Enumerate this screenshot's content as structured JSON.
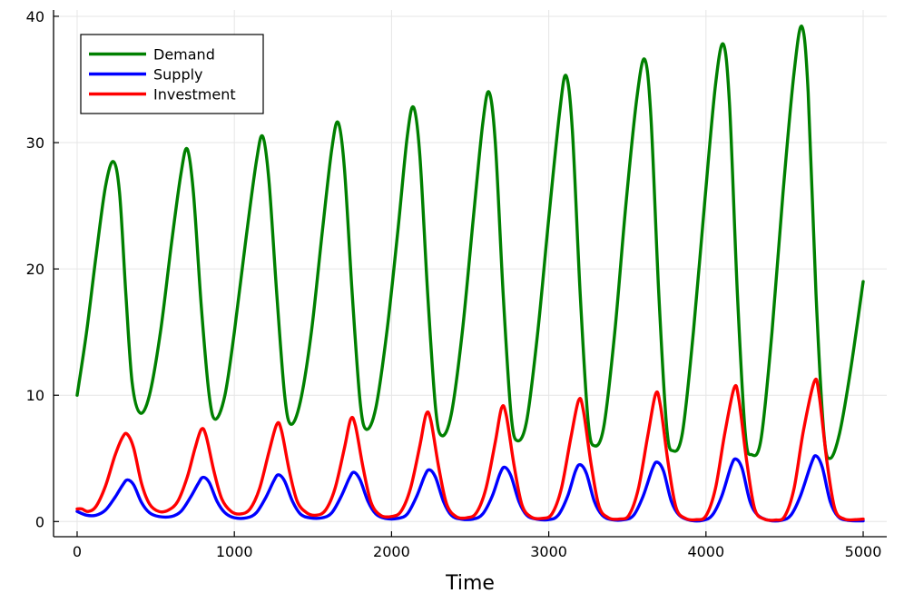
{
  "chart_data": {
    "type": "line",
    "title": "",
    "xlabel": "Time",
    "ylabel": "",
    "xlim": [
      -150,
      5150
    ],
    "ylim": [
      -1.2,
      40.5
    ],
    "grid": true,
    "legend_position": "top-left",
    "x_ticks": [
      0,
      1000,
      2000,
      3000,
      4000,
      5000
    ],
    "x_tick_labels": [
      "0",
      "1000",
      "2000",
      "3000",
      "4000",
      "5000"
    ],
    "y_ticks": [
      0,
      10,
      20,
      30,
      40
    ],
    "y_tick_labels": [
      "0",
      "10",
      "20",
      "30",
      "40"
    ],
    "series": [
      {
        "name": "Demand",
        "color": "#008000",
        "points": [
          [
            0,
            10
          ],
          [
            60,
            15
          ],
          [
            120,
            21
          ],
          [
            180,
            26.5
          ],
          [
            230,
            28.5
          ],
          [
            270,
            26
          ],
          [
            310,
            18
          ],
          [
            350,
            11
          ],
          [
            400,
            8.6
          ],
          [
            460,
            10
          ],
          [
            530,
            15
          ],
          [
            600,
            22
          ],
          [
            660,
            27.5
          ],
          [
            700,
            29.5
          ],
          [
            740,
            26
          ],
          [
            790,
            17
          ],
          [
            840,
            10
          ],
          [
            880,
            8.1
          ],
          [
            940,
            10
          ],
          [
            1000,
            15
          ],
          [
            1070,
            22
          ],
          [
            1140,
            28.5
          ],
          [
            1180,
            30.5
          ],
          [
            1220,
            27
          ],
          [
            1270,
            18
          ],
          [
            1320,
            10
          ],
          [
            1360,
            7.7
          ],
          [
            1420,
            9.5
          ],
          [
            1490,
            15
          ],
          [
            1560,
            23
          ],
          [
            1620,
            29.5
          ],
          [
            1660,
            31.6
          ],
          [
            1700,
            28
          ],
          [
            1750,
            18
          ],
          [
            1800,
            9.5
          ],
          [
            1840,
            7.3
          ],
          [
            1900,
            9
          ],
          [
            1970,
            15
          ],
          [
            2040,
            23
          ],
          [
            2100,
            30.5
          ],
          [
            2140,
            32.8
          ],
          [
            2180,
            29
          ],
          [
            2230,
            18
          ],
          [
            2280,
            9
          ],
          [
            2320,
            6.8
          ],
          [
            2380,
            8.5
          ],
          [
            2450,
            15
          ],
          [
            2520,
            24
          ],
          [
            2580,
            31.5
          ],
          [
            2620,
            34
          ],
          [
            2660,
            30
          ],
          [
            2710,
            18
          ],
          [
            2760,
            8.5
          ],
          [
            2800,
            6.4
          ],
          [
            2860,
            8
          ],
          [
            2930,
            15
          ],
          [
            3000,
            24
          ],
          [
            3070,
            32.5
          ],
          [
            3110,
            35.3
          ],
          [
            3150,
            31
          ],
          [
            3200,
            18
          ],
          [
            3250,
            8
          ],
          [
            3290,
            6
          ],
          [
            3350,
            7.5
          ],
          [
            3420,
            15
          ],
          [
            3490,
            25
          ],
          [
            3560,
            33.5
          ],
          [
            3610,
            36.6
          ],
          [
            3650,
            32
          ],
          [
            3700,
            18
          ],
          [
            3750,
            7.5
          ],
          [
            3790,
            5.6
          ],
          [
            3850,
            7
          ],
          [
            3920,
            15
          ],
          [
            3990,
            25
          ],
          [
            4060,
            34.5
          ],
          [
            4110,
            37.8
          ],
          [
            4150,
            33
          ],
          [
            4200,
            18
          ],
          [
            4250,
            7
          ],
          [
            4290,
            5.3
          ],
          [
            4350,
            6.5
          ],
          [
            4420,
            15
          ],
          [
            4490,
            26
          ],
          [
            4560,
            35.5
          ],
          [
            4610,
            39.2
          ],
          [
            4650,
            34
          ],
          [
            4700,
            18
          ],
          [
            4750,
            7
          ],
          [
            4790,
            5
          ],
          [
            4850,
            7
          ],
          [
            4920,
            12
          ],
          [
            5000,
            19
          ]
        ]
      },
      {
        "name": "Supply",
        "color": "#0000ff",
        "points": [
          [
            0,
            0.8
          ],
          [
            60,
            0.5
          ],
          [
            120,
            0.5
          ],
          [
            180,
            0.9
          ],
          [
            240,
            1.9
          ],
          [
            290,
            2.9
          ],
          [
            320,
            3.3
          ],
          [
            360,
            2.9
          ],
          [
            410,
            1.5
          ],
          [
            460,
            0.7
          ],
          [
            520,
            0.4
          ],
          [
            600,
            0.4
          ],
          [
            660,
            0.8
          ],
          [
            720,
            1.9
          ],
          [
            770,
            3
          ],
          [
            800,
            3.5
          ],
          [
            840,
            3.1
          ],
          [
            890,
            1.6
          ],
          [
            940,
            0.7
          ],
          [
            1000,
            0.3
          ],
          [
            1080,
            0.3
          ],
          [
            1140,
            0.7
          ],
          [
            1200,
            1.9
          ],
          [
            1250,
            3.2
          ],
          [
            1280,
            3.7
          ],
          [
            1320,
            3.2
          ],
          [
            1370,
            1.6
          ],
          [
            1420,
            0.6
          ],
          [
            1480,
            0.3
          ],
          [
            1560,
            0.3
          ],
          [
            1620,
            0.7
          ],
          [
            1680,
            2
          ],
          [
            1730,
            3.4
          ],
          [
            1760,
            3.9
          ],
          [
            1800,
            3.3
          ],
          [
            1850,
            1.6
          ],
          [
            1900,
            0.6
          ],
          [
            1960,
            0.25
          ],
          [
            2040,
            0.25
          ],
          [
            2100,
            0.6
          ],
          [
            2160,
            2
          ],
          [
            2210,
            3.6
          ],
          [
            2240,
            4.1
          ],
          [
            2280,
            3.5
          ],
          [
            2330,
            1.6
          ],
          [
            2380,
            0.5
          ],
          [
            2440,
            0.2
          ],
          [
            2520,
            0.2
          ],
          [
            2580,
            0.6
          ],
          [
            2640,
            2
          ],
          [
            2690,
            3.8
          ],
          [
            2720,
            4.3
          ],
          [
            2760,
            3.6
          ],
          [
            2810,
            1.6
          ],
          [
            2860,
            0.5
          ],
          [
            2920,
            0.2
          ],
          [
            3000,
            0.15
          ],
          [
            3060,
            0.5
          ],
          [
            3120,
            2
          ],
          [
            3170,
            4
          ],
          [
            3200,
            4.5
          ],
          [
            3240,
            3.8
          ],
          [
            3290,
            1.6
          ],
          [
            3340,
            0.5
          ],
          [
            3400,
            0.15
          ],
          [
            3480,
            0.15
          ],
          [
            3540,
            0.5
          ],
          [
            3600,
            2
          ],
          [
            3660,
            4.2
          ],
          [
            3690,
            4.7
          ],
          [
            3730,
            4
          ],
          [
            3780,
            1.6
          ],
          [
            3830,
            0.5
          ],
          [
            3900,
            0.1
          ],
          [
            3980,
            0.1
          ],
          [
            4040,
            0.5
          ],
          [
            4100,
            2
          ],
          [
            4160,
            4.4
          ],
          [
            4190,
            4.95
          ],
          [
            4230,
            4.2
          ],
          [
            4280,
            1.6
          ],
          [
            4330,
            0.5
          ],
          [
            4400,
            0.1
          ],
          [
            4480,
            0.1
          ],
          [
            4540,
            0.5
          ],
          [
            4600,
            2
          ],
          [
            4670,
            4.6
          ],
          [
            4700,
            5.2
          ],
          [
            4740,
            4.3
          ],
          [
            4790,
            1.6
          ],
          [
            4840,
            0.4
          ],
          [
            4900,
            0.1
          ],
          [
            5000,
            0.05
          ]
        ]
      },
      {
        "name": "Investment",
        "color": "#ff0000",
        "points": [
          [
            0,
            1
          ],
          [
            30,
            1
          ],
          [
            70,
            0.8
          ],
          [
            120,
            1.2
          ],
          [
            180,
            2.8
          ],
          [
            240,
            5.2
          ],
          [
            290,
            6.7
          ],
          [
            320,
            6.9
          ],
          [
            360,
            5.8
          ],
          [
            410,
            3
          ],
          [
            460,
            1.4
          ],
          [
            520,
            0.8
          ],
          [
            580,
            0.9
          ],
          [
            640,
            1.6
          ],
          [
            700,
            3.5
          ],
          [
            750,
            5.8
          ],
          [
            790,
            7.3
          ],
          [
            820,
            6.8
          ],
          [
            870,
            4
          ],
          [
            920,
            1.8
          ],
          [
            980,
            0.8
          ],
          [
            1040,
            0.6
          ],
          [
            1100,
            1
          ],
          [
            1160,
            2.6
          ],
          [
            1220,
            5.5
          ],
          [
            1270,
            7.7
          ],
          [
            1300,
            7.2
          ],
          [
            1350,
            4
          ],
          [
            1400,
            1.6
          ],
          [
            1460,
            0.7
          ],
          [
            1520,
            0.5
          ],
          [
            1580,
            0.9
          ],
          [
            1640,
            2.6
          ],
          [
            1700,
            5.8
          ],
          [
            1740,
            8.1
          ],
          [
            1770,
            7.6
          ],
          [
            1820,
            4.2
          ],
          [
            1870,
            1.5
          ],
          [
            1930,
            0.5
          ],
          [
            2000,
            0.4
          ],
          [
            2060,
            0.8
          ],
          [
            2120,
            2.6
          ],
          [
            2180,
            6
          ],
          [
            2220,
            8.5
          ],
          [
            2250,
            8
          ],
          [
            2300,
            4.3
          ],
          [
            2350,
            1.4
          ],
          [
            2410,
            0.4
          ],
          [
            2480,
            0.3
          ],
          [
            2540,
            0.7
          ],
          [
            2600,
            2.6
          ],
          [
            2660,
            6.3
          ],
          [
            2700,
            9
          ],
          [
            2730,
            8.4
          ],
          [
            2780,
            4.4
          ],
          [
            2830,
            1.3
          ],
          [
            2890,
            0.35
          ],
          [
            2960,
            0.25
          ],
          [
            3020,
            0.6
          ],
          [
            3080,
            2.6
          ],
          [
            3140,
            6.6
          ],
          [
            3190,
            9.6
          ],
          [
            3220,
            8.8
          ],
          [
            3270,
            4.5
          ],
          [
            3320,
            1.2
          ],
          [
            3380,
            0.3
          ],
          [
            3450,
            0.2
          ],
          [
            3510,
            0.5
          ],
          [
            3570,
            2.6
          ],
          [
            3630,
            6.8
          ],
          [
            3680,
            10.1
          ],
          [
            3710,
            9.2
          ],
          [
            3760,
            4.6
          ],
          [
            3810,
            1.1
          ],
          [
            3870,
            0.25
          ],
          [
            3940,
            0.15
          ],
          [
            4000,
            0.45
          ],
          [
            4060,
            2.6
          ],
          [
            4120,
            7
          ],
          [
            4180,
            10.6
          ],
          [
            4210,
            9.6
          ],
          [
            4260,
            4.7
          ],
          [
            4310,
            1
          ],
          [
            4370,
            0.2
          ],
          [
            4440,
            0.12
          ],
          [
            4500,
            0.4
          ],
          [
            4560,
            2.6
          ],
          [
            4620,
            7.2
          ],
          [
            4690,
            11.1
          ],
          [
            4720,
            10
          ],
          [
            4770,
            4.7
          ],
          [
            4820,
            1
          ],
          [
            4880,
            0.2
          ],
          [
            4950,
            0.15
          ],
          [
            5000,
            0.2
          ]
        ]
      }
    ]
  }
}
